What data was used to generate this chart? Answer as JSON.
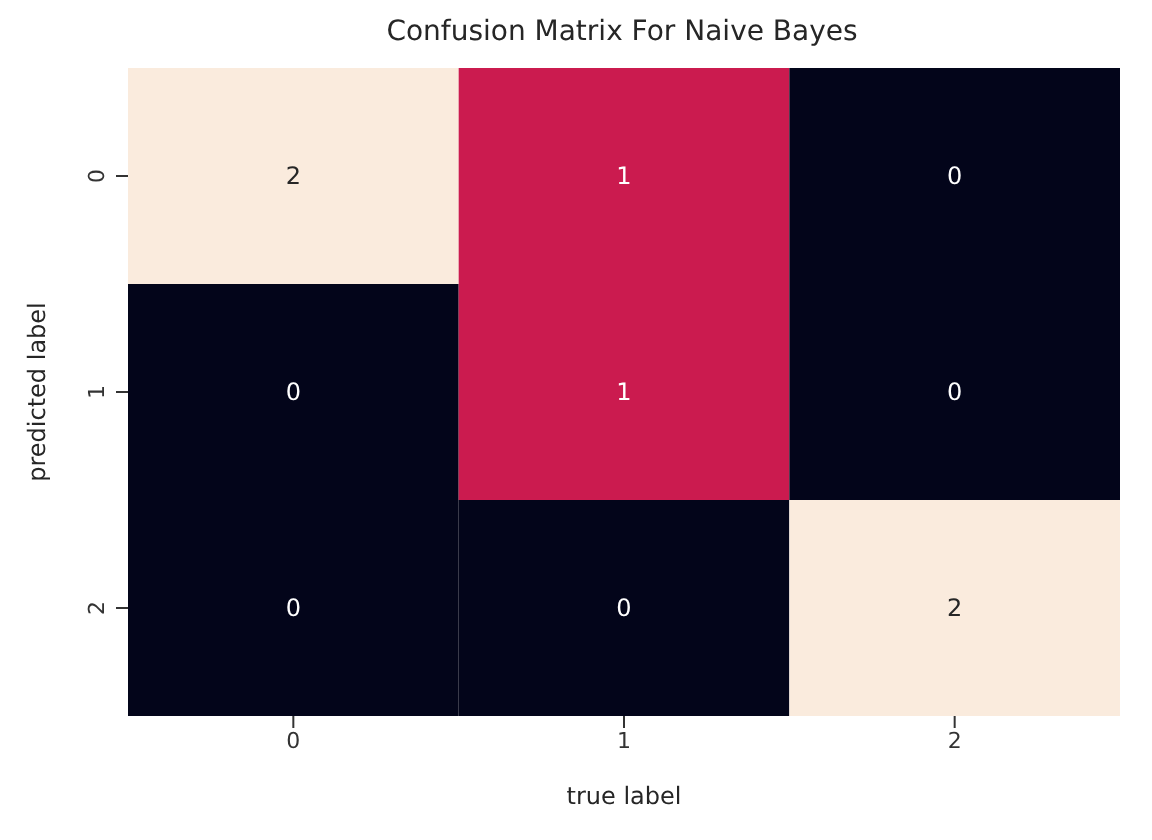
{
  "chart_data": {
    "type": "heatmap",
    "title": "Confusion Matrix For Naive Bayes",
    "xlabel": "true label",
    "ylabel": "predicted label",
    "categories": [
      "0",
      "1",
      "2"
    ],
    "y_categories": [
      "0",
      "1",
      "2"
    ],
    "cells": [
      [
        2,
        1,
        0
      ],
      [
        0,
        1,
        0
      ],
      [
        0,
        0,
        2
      ]
    ],
    "colors": [
      "#03051a",
      "#cb1b4f",
      "#faebdd"
    ],
    "data_labels": true
  }
}
